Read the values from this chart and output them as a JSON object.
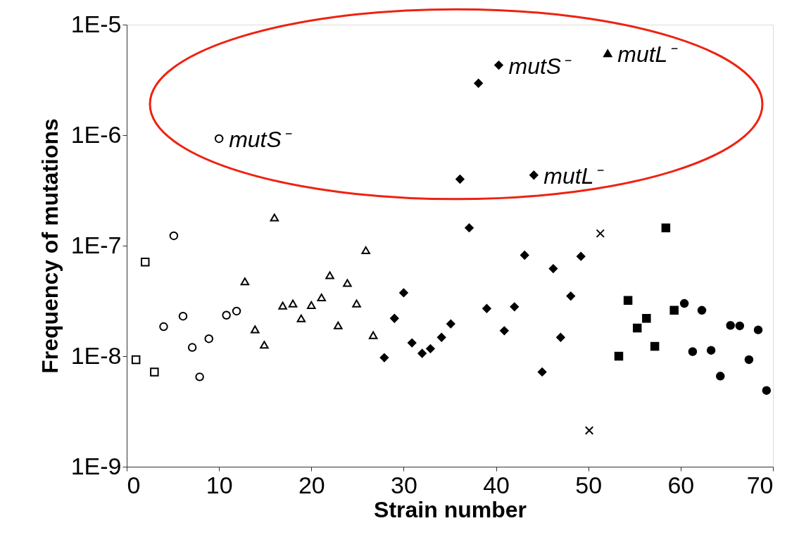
{
  "chart_data": {
    "type": "scatter",
    "xlabel": "Strain number",
    "ylabel": "Frequency of mutations",
    "log": "y",
    "grid": false,
    "xlim": [
      0,
      70
    ],
    "xticks": [
      0,
      10,
      20,
      30,
      40,
      50,
      60,
      70
    ],
    "ylim": [
      1e-09,
      1e-05
    ],
    "yticks": [
      {
        "value": 1e-09,
        "label": "1E-9"
      },
      {
        "value": 1e-08,
        "label": "1E-8"
      },
      {
        "value": 1e-07,
        "label": "1E-7"
      },
      {
        "value": 1e-06,
        "label": "1E-6"
      },
      {
        "value": 1e-05,
        "label": "1E-5"
      }
    ],
    "series": [
      {
        "marker": "square",
        "color": "#ffffff",
        "x": [
          1,
          2,
          3
        ],
        "values": [
          9.3e-09,
          7.1e-08,
          7.2e-09
        ]
      },
      {
        "marker": "circle",
        "color": "#ffffff",
        "x": [
          4,
          5.1,
          6.1,
          7.1,
          7.9,
          8.9,
          10,
          10.8,
          11.9
        ],
        "values": [
          1.85e-08,
          1.23e-07,
          2.3e-08,
          1.2e-08,
          6.5e-09,
          1.44e-08,
          9.3e-07,
          2.35e-08,
          2.56e-08
        ]
      },
      {
        "marker": "triangle",
        "color": "#ffffff",
        "x": [
          12.8,
          13.9,
          14.9,
          16,
          16.9,
          18,
          18.9,
          20,
          21.1,
          22,
          22.9,
          23.9,
          24.9,
          25.9,
          26.7
        ],
        "values": [
          4.75e-08,
          1.75e-08,
          1.27e-08,
          1.8e-07,
          2.87e-08,
          3e-08,
          2.2e-08,
          2.9e-08,
          3.4e-08,
          5.4e-08,
          1.9e-08,
          4.6e-08,
          3e-08,
          9.1e-08,
          1.55e-08
        ]
      },
      {
        "marker": "diamond",
        "color": "#000000",
        "x": [
          27.9,
          29,
          30,
          30.9,
          32,
          32.9,
          34.1,
          35.1,
          36.1,
          37.1,
          38.1,
          39,
          40.3,
          40.9,
          42,
          43.1,
          44.1,
          45,
          46.2,
          47,
          48.1,
          49.2
        ],
        "values": [
          9.7e-09,
          2.2e-08,
          3.75e-08,
          1.32e-08,
          1.06e-08,
          1.17e-08,
          1.48e-08,
          1.96e-08,
          4e-07,
          1.45e-07,
          2.95e-06,
          2.7e-08,
          4.3e-06,
          1.7e-08,
          2.8e-08,
          8.2e-08,
          4.35e-07,
          7.2e-09,
          6.2e-08,
          1.48e-08,
          3.5e-08,
          8e-08
        ]
      },
      {
        "marker": "cross",
        "color": "#000000",
        "x": [
          50.1,
          51.3
        ],
        "values": [
          2.13e-09,
          1.29e-07
        ]
      },
      {
        "marker": "triangle",
        "color": "#000000",
        "x": [
          52.1
        ],
        "values": [
          5.5e-06
        ]
      },
      {
        "marker": "square",
        "color": "#000000",
        "x": [
          53.3,
          54.3,
          55.3,
          56.3,
          57.2,
          58.4,
          59.3
        ],
        "values": [
          1e-08,
          3.2e-08,
          1.8e-08,
          2.2e-08,
          1.23e-08,
          1.45e-07,
          2.6e-08
        ]
      },
      {
        "marker": "circle",
        "color": "#000000",
        "x": [
          60.4,
          61.3,
          62.3,
          63.3,
          64.3,
          65.4,
          66.4,
          67.4,
          68.4,
          69.3
        ],
        "values": [
          3e-08,
          1.1e-08,
          2.6e-08,
          1.13e-08,
          6.6e-09,
          1.9e-08,
          1.88e-08,
          9.3e-09,
          1.73e-08,
          4.9e-09
        ]
      }
    ],
    "annotations": [
      {
        "text": "mutS⁻",
        "x": 10,
        "y": 9.3e-07
      },
      {
        "text": "mutS⁻",
        "x": 40.3,
        "y": 4.3e-06
      },
      {
        "text": "mutL⁻",
        "x": 52.1,
        "y": 5.5e-06
      },
      {
        "text": "mutL⁻",
        "x": 44.1,
        "y": 4.35e-07
      }
    ]
  }
}
